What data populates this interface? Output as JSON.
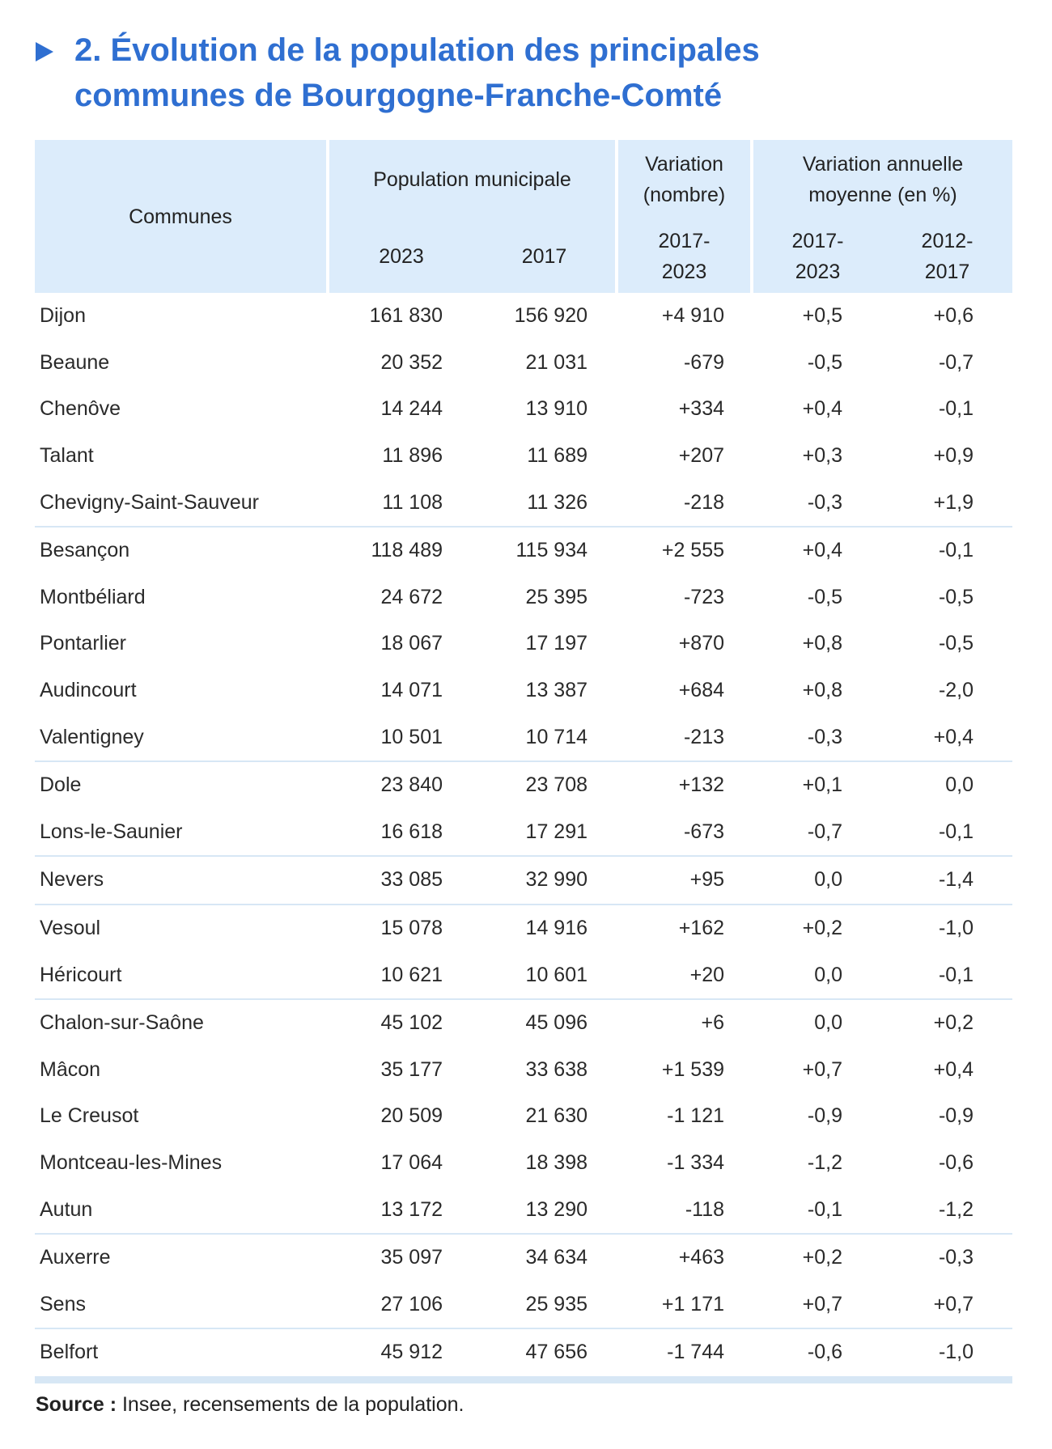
{
  "title": {
    "line1": "2. Évolution de la population des principales",
    "line2": "communes de Bourgogne-Franche-Comté"
  },
  "header": {
    "communes": "Communes",
    "population": "Population municipale",
    "variation_nombre": "Variation (nombre)",
    "variation_annuelle": "Variation annuelle moyenne (en %)",
    "y2023": "2023",
    "y2017": "2017",
    "p1": "2017-2023",
    "p2": "2017-2023",
    "p3": "2012-2017"
  },
  "rows": [
    {
      "commune": "Dijon",
      "pop2023": "161 830",
      "pop2017": "156 920",
      "var": "+4 910",
      "tx1": "+0,5",
      "tx2": "+0,6"
    },
    {
      "commune": "Beaune",
      "pop2023": "20 352",
      "pop2017": "21 031",
      "var": "-679",
      "tx1": "-0,5",
      "tx2": "-0,7"
    },
    {
      "commune": "Chenôve",
      "pop2023": "14 244",
      "pop2017": "13 910",
      "var": "+334",
      "tx1": "+0,4",
      "tx2": "-0,1"
    },
    {
      "commune": "Talant",
      "pop2023": "11 896",
      "pop2017": "11 689",
      "var": "+207",
      "tx1": "+0,3",
      "tx2": "+0,9"
    },
    {
      "commune": "Chevigny-Saint-Sauveur",
      "pop2023": "11 108",
      "pop2017": "11 326",
      "var": "-218",
      "tx1": "-0,3",
      "tx2": "+1,9"
    },
    {
      "commune": "Besançon",
      "pop2023": "118 489",
      "pop2017": "115 934",
      "var": "+2 555",
      "tx1": "+0,4",
      "tx2": "-0,1"
    },
    {
      "commune": "Montbéliard",
      "pop2023": "24 672",
      "pop2017": "25 395",
      "var": "-723",
      "tx1": "-0,5",
      "tx2": "-0,5"
    },
    {
      "commune": "Pontarlier",
      "pop2023": "18 067",
      "pop2017": "17 197",
      "var": "+870",
      "tx1": "+0,8",
      "tx2": "-0,5"
    },
    {
      "commune": "Audincourt",
      "pop2023": "14 071",
      "pop2017": "13 387",
      "var": "+684",
      "tx1": "+0,8",
      "tx2": "-2,0"
    },
    {
      "commune": "Valentigney",
      "pop2023": "10 501",
      "pop2017": "10 714",
      "var": "-213",
      "tx1": "-0,3",
      "tx2": "+0,4"
    },
    {
      "commune": "Dole",
      "pop2023": "23 840",
      "pop2017": "23 708",
      "var": "+132",
      "tx1": "+0,1",
      "tx2": "0,0"
    },
    {
      "commune": "Lons-le-Saunier",
      "pop2023": "16 618",
      "pop2017": "17 291",
      "var": "-673",
      "tx1": "-0,7",
      "tx2": "-0,1"
    },
    {
      "commune": "Nevers",
      "pop2023": "33 085",
      "pop2017": "32 990",
      "var": "+95",
      "tx1": "0,0",
      "tx2": "-1,4"
    },
    {
      "commune": "Vesoul",
      "pop2023": "15 078",
      "pop2017": "14 916",
      "var": "+162",
      "tx1": "+0,2",
      "tx2": "-1,0"
    },
    {
      "commune": "Héricourt",
      "pop2023": "10 621",
      "pop2017": "10 601",
      "var": "+20",
      "tx1": "0,0",
      "tx2": "-0,1"
    },
    {
      "commune": "Chalon-sur-Saône",
      "pop2023": "45 102",
      "pop2017": "45 096",
      "var": "+6",
      "tx1": "0,0",
      "tx2": "+0,2"
    },
    {
      "commune": "Mâcon",
      "pop2023": "35 177",
      "pop2017": "33 638",
      "var": "+1 539",
      "tx1": "+0,7",
      "tx2": "+0,4"
    },
    {
      "commune": "Le Creusot",
      "pop2023": "20 509",
      "pop2017": "21 630",
      "var": "-1 121",
      "tx1": "-0,9",
      "tx2": "-0,9"
    },
    {
      "commune": "Montceau-les-Mines",
      "pop2023": "17 064",
      "pop2017": "18 398",
      "var": "-1 334",
      "tx1": "-1,2",
      "tx2": "-0,6"
    },
    {
      "commune": "Autun",
      "pop2023": "13 172",
      "pop2017": "13 290",
      "var": "-118",
      "tx1": "-0,1",
      "tx2": "-1,2"
    },
    {
      "commune": "Auxerre",
      "pop2023": "35 097",
      "pop2017": "34 634",
      "var": "+463",
      "tx1": "+0,2",
      "tx2": "-0,3"
    },
    {
      "commune": "Sens",
      "pop2023": "27 106",
      "pop2017": "25 935",
      "var": "+1 171",
      "tx1": "+0,7",
      "tx2": "+0,7"
    },
    {
      "commune": "Belfort",
      "pop2023": "45 912",
      "pop2017": "47 656",
      "var": "-1 744",
      "tx1": "-0,6",
      "tx2": "-1,0"
    }
  ],
  "group_ends": [
    4,
    9,
    11,
    12,
    14,
    19,
    21
  ],
  "source": {
    "label": "Source :",
    "text": " Insee, recensements de la population."
  }
}
